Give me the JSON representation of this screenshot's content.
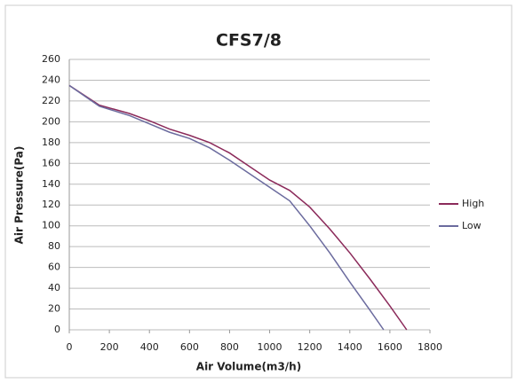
{
  "chart_data": {
    "type": "line",
    "title": "CFS7/8",
    "xlabel": "Air Volume(m3/h)",
    "ylabel": "Air Pressure(Pa)",
    "xlim": [
      0,
      1800
    ],
    "xticks": [
      0,
      200,
      400,
      600,
      800,
      1000,
      1200,
      1400,
      1600,
      1800
    ],
    "ylim": [
      0,
      260
    ],
    "yticks": [
      0,
      20,
      40,
      60,
      80,
      100,
      120,
      140,
      160,
      180,
      200,
      220,
      240,
      260
    ],
    "grid": true,
    "legend": "right",
    "series": [
      {
        "name": "High",
        "color": "#8b2a5a",
        "x": [
          0,
          150,
          300,
          400,
          500,
          600,
          700,
          800,
          900,
          1000,
          1100,
          1200,
          1300,
          1400,
          1500,
          1600,
          1684
        ],
        "values": [
          235,
          216,
          208,
          201,
          193,
          187,
          180,
          170,
          157,
          144,
          134,
          118,
          97,
          74,
          49,
          23,
          0
        ]
      },
      {
        "name": "Low",
        "color": "#6b6b9e",
        "x": [
          0,
          150,
          300,
          400,
          500,
          600,
          700,
          800,
          900,
          1000,
          1100,
          1200,
          1300,
          1400,
          1500,
          1569
        ],
        "values": [
          235,
          215,
          206,
          198,
          190,
          184,
          175,
          163,
          150,
          137,
          124,
          100,
          74,
          46,
          19,
          0
        ]
      }
    ]
  }
}
